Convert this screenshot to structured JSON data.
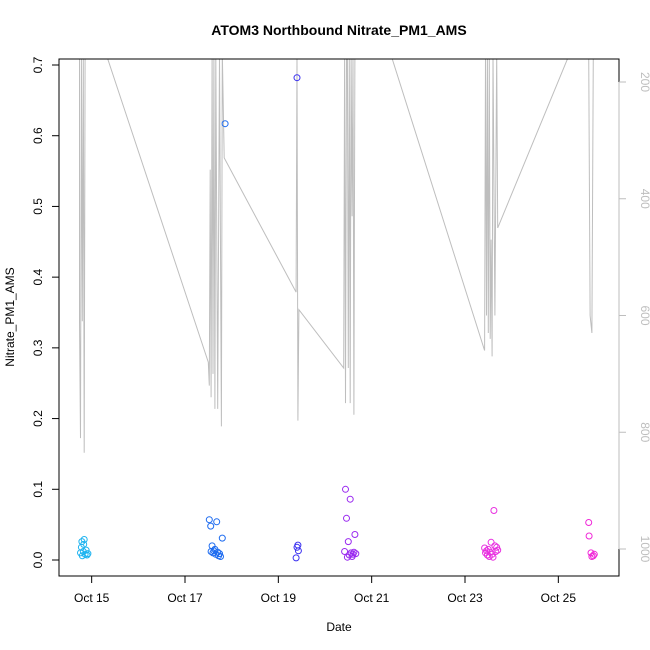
{
  "chart_data": {
    "type": "scatter",
    "title": "ATOM3 Northbound Nitrate_PM1_AMS",
    "xlabel": "Date",
    "ylabel": "Nitrate_PM1_AMS",
    "ylim": [
      0,
      0.7
    ],
    "y_ticks": [
      "0.0",
      "0.1",
      "0.2",
      "0.3",
      "0.4",
      "0.5",
      "0.6",
      "0.7"
    ],
    "xlim_days": [
      14.3,
      26.3
    ],
    "x_ticks": [
      {
        "day": 15,
        "label": "Oct 15"
      },
      {
        "day": 17,
        "label": "Oct 17"
      },
      {
        "day": 19,
        "label": "Oct 19"
      },
      {
        "day": 21,
        "label": "Oct 21"
      },
      {
        "day": 23,
        "label": "Oct 23"
      },
      {
        "day": 25,
        "label": "Oct 25"
      }
    ],
    "secondary_axis": {
      "description": "pressure (grey line), reversed",
      "ylim": [
        1030,
        150
      ],
      "ticks": [
        "200",
        "400",
        "600",
        "800",
        "1000"
      ],
      "color": "#bebebe"
    },
    "points": [
      {
        "x": 14.76,
        "y": 0.01,
        "c": "#1fb4f0"
      },
      {
        "x": 14.78,
        "y": 0.018,
        "c": "#1fb4f0"
      },
      {
        "x": 14.79,
        "y": 0.026,
        "c": "#1fb4f0"
      },
      {
        "x": 14.8,
        "y": 0.006,
        "c": "#1fb4f0"
      },
      {
        "x": 14.82,
        "y": 0.012,
        "c": "#1fb4f0"
      },
      {
        "x": 14.83,
        "y": 0.022,
        "c": "#1fb4f0"
      },
      {
        "x": 14.84,
        "y": 0.029,
        "c": "#1fb4f0"
      },
      {
        "x": 14.86,
        "y": 0.008,
        "c": "#1fb4f0"
      },
      {
        "x": 14.88,
        "y": 0.014,
        "c": "#1fb4f0"
      },
      {
        "x": 14.9,
        "y": 0.007,
        "c": "#1fb4f0"
      },
      {
        "x": 14.92,
        "y": 0.009,
        "c": "#1fb4f0"
      },
      {
        "x": 17.52,
        "y": 0.057,
        "c": "#1e6cf0"
      },
      {
        "x": 17.55,
        "y": 0.048,
        "c": "#1e6cf0"
      },
      {
        "x": 17.56,
        "y": 0.012,
        "c": "#1e6cf0"
      },
      {
        "x": 17.58,
        "y": 0.02,
        "c": "#1e6cf0"
      },
      {
        "x": 17.6,
        "y": 0.01,
        "c": "#1e6cf0"
      },
      {
        "x": 17.62,
        "y": 0.013,
        "c": "#1e6cf0"
      },
      {
        "x": 17.64,
        "y": 0.015,
        "c": "#1e6cf0"
      },
      {
        "x": 17.66,
        "y": 0.008,
        "c": "#1e6cf0"
      },
      {
        "x": 17.68,
        "y": 0.054,
        "c": "#1e6cf0"
      },
      {
        "x": 17.7,
        "y": 0.011,
        "c": "#1e6cf0"
      },
      {
        "x": 17.72,
        "y": 0.006,
        "c": "#1e6cf0"
      },
      {
        "x": 17.74,
        "y": 0.009,
        "c": "#1e6cf0"
      },
      {
        "x": 17.76,
        "y": 0.005,
        "c": "#1e6cf0"
      },
      {
        "x": 17.8,
        "y": 0.031,
        "c": "#1e6cf0"
      },
      {
        "x": 17.86,
        "y": 0.617,
        "c": "#1e6cf0"
      },
      {
        "x": 19.38,
        "y": 0.003,
        "c": "#3a30f0"
      },
      {
        "x": 19.4,
        "y": 0.018,
        "c": "#3a30f0"
      },
      {
        "x": 19.42,
        "y": 0.021,
        "c": "#3a30f0"
      },
      {
        "x": 19.43,
        "y": 0.013,
        "c": "#3a30f0"
      },
      {
        "x": 19.4,
        "y": 0.682,
        "c": "#3a30f0"
      },
      {
        "x": 20.42,
        "y": 0.012,
        "c": "#9a2af0"
      },
      {
        "x": 20.44,
        "y": 0.1,
        "c": "#9a2af0"
      },
      {
        "x": 20.46,
        "y": 0.059,
        "c": "#9a2af0"
      },
      {
        "x": 20.48,
        "y": 0.004,
        "c": "#9a2af0"
      },
      {
        "x": 20.5,
        "y": 0.026,
        "c": "#9a2af0"
      },
      {
        "x": 20.52,
        "y": 0.007,
        "c": "#9a2af0"
      },
      {
        "x": 20.54,
        "y": 0.086,
        "c": "#9a2af0"
      },
      {
        "x": 20.56,
        "y": 0.01,
        "c": "#9a2af0"
      },
      {
        "x": 20.58,
        "y": 0.005,
        "c": "#9a2af0"
      },
      {
        "x": 20.6,
        "y": 0.008,
        "c": "#9a2af0"
      },
      {
        "x": 20.62,
        "y": 0.011,
        "c": "#9a2af0"
      },
      {
        "x": 20.64,
        "y": 0.036,
        "c": "#9a2af0"
      },
      {
        "x": 20.66,
        "y": 0.009,
        "c": "#9a2af0"
      },
      {
        "x": 23.42,
        "y": 0.017,
        "c": "#e830e0"
      },
      {
        "x": 23.44,
        "y": 0.01,
        "c": "#e830e0"
      },
      {
        "x": 23.46,
        "y": 0.013,
        "c": "#e830e0"
      },
      {
        "x": 23.48,
        "y": 0.007,
        "c": "#e830e0"
      },
      {
        "x": 23.5,
        "y": 0.015,
        "c": "#e830e0"
      },
      {
        "x": 23.52,
        "y": 0.005,
        "c": "#e830e0"
      },
      {
        "x": 23.54,
        "y": 0.011,
        "c": "#e830e0"
      },
      {
        "x": 23.56,
        "y": 0.025,
        "c": "#e830e0"
      },
      {
        "x": 23.58,
        "y": 0.008,
        "c": "#e830e0"
      },
      {
        "x": 23.6,
        "y": 0.004,
        "c": "#e830e0"
      },
      {
        "x": 23.62,
        "y": 0.07,
        "c": "#e830e0"
      },
      {
        "x": 23.64,
        "y": 0.02,
        "c": "#e830e0"
      },
      {
        "x": 23.66,
        "y": 0.012,
        "c": "#e830e0"
      },
      {
        "x": 23.68,
        "y": 0.018,
        "c": "#e830e0"
      },
      {
        "x": 23.7,
        "y": 0.014,
        "c": "#e830e0"
      },
      {
        "x": 25.65,
        "y": 0.053,
        "c": "#f028d8"
      },
      {
        "x": 25.66,
        "y": 0.034,
        "c": "#f028d8"
      },
      {
        "x": 25.7,
        "y": 0.01,
        "c": "#f028d8"
      },
      {
        "x": 25.72,
        "y": 0.005,
        "c": "#f028d8"
      },
      {
        "x": 25.75,
        "y": 0.006,
        "c": "#f028d8"
      },
      {
        "x": 25.77,
        "y": 0.008,
        "c": "#f028d8"
      }
    ],
    "pressure_line": [
      [
        14.74,
        150
      ],
      [
        14.74,
        610
      ],
      [
        14.76,
        810
      ],
      [
        14.78,
        150
      ],
      [
        14.8,
        610
      ],
      [
        14.82,
        150
      ],
      [
        14.84,
        835
      ],
      [
        14.86,
        150
      ],
      [
        14.88,
        150
      ],
      [
        15.3,
        150
      ],
      [
        17.5,
        680
      ],
      [
        17.52,
        720
      ],
      [
        17.54,
        350
      ],
      [
        17.56,
        740
      ],
      [
        17.58,
        150
      ],
      [
        17.6,
        700
      ],
      [
        17.62,
        150
      ],
      [
        17.64,
        760
      ],
      [
        17.66,
        150
      ],
      [
        17.7,
        760
      ],
      [
        17.74,
        150
      ],
      [
        17.78,
        790
      ],
      [
        17.8,
        150
      ],
      [
        17.84,
        330
      ],
      [
        19.38,
        560
      ],
      [
        19.4,
        150
      ],
      [
        19.42,
        780
      ],
      [
        19.44,
        590
      ],
      [
        20.4,
        690
      ],
      [
        20.42,
        150
      ],
      [
        20.44,
        750
      ],
      [
        20.46,
        150
      ],
      [
        20.48,
        150
      ],
      [
        20.5,
        690
      ],
      [
        20.52,
        150
      ],
      [
        20.54,
        750
      ],
      [
        20.56,
        150
      ],
      [
        20.58,
        430
      ],
      [
        20.6,
        150
      ],
      [
        20.62,
        770
      ],
      [
        20.64,
        150
      ],
      [
        21.4,
        150
      ],
      [
        23.42,
        660
      ],
      [
        23.44,
        150
      ],
      [
        23.46,
        600
      ],
      [
        23.48,
        150
      ],
      [
        23.5,
        630
      ],
      [
        23.52,
        150
      ],
      [
        23.54,
        640
      ],
      [
        23.56,
        470
      ],
      [
        23.58,
        670
      ],
      [
        23.6,
        150
      ],
      [
        23.64,
        600
      ],
      [
        23.68,
        150
      ],
      [
        23.7,
        450
      ],
      [
        25.25,
        150
      ],
      [
        25.65,
        150
      ],
      [
        25.68,
        600
      ],
      [
        25.72,
        630
      ],
      [
        25.75,
        150
      ],
      [
        25.78,
        150
      ]
    ]
  }
}
